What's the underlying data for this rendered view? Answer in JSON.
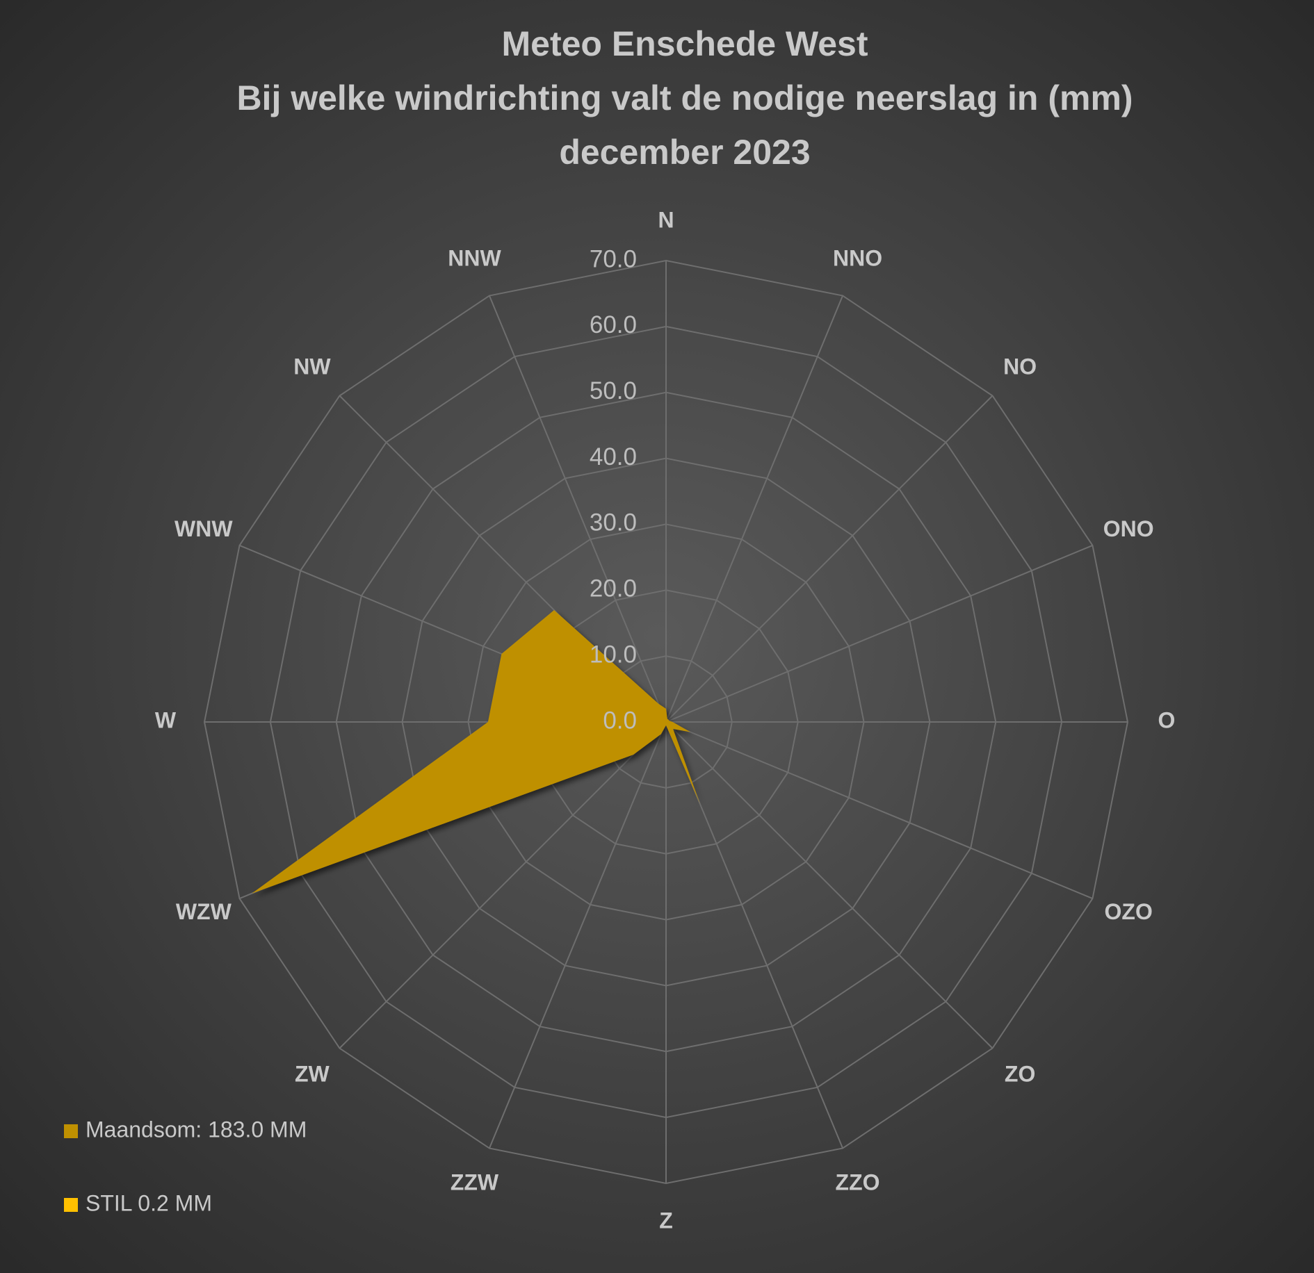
{
  "chart_data": {
    "type": "radar",
    "title": [
      "Meteo Enschede West",
      "Bij welke windrichting valt de nodige neerslag in (mm)",
      "december 2023"
    ],
    "categories": [
      "N",
      "NNO",
      "NO",
      "ONO",
      "O",
      "OZO",
      "ZO",
      "ZZO",
      "Z",
      "ZZW",
      "ZW",
      "WZW",
      "W",
      "WNW",
      "NW",
      "NNW"
    ],
    "series": [
      {
        "name": "Maandsom: 183.0 MM",
        "color": "#bf9000",
        "values": [
          2,
          0.5,
          0.5,
          0.5,
          1,
          4,
          1.5,
          13.5,
          0.5,
          2,
          7,
          68,
          27,
          27,
          24,
          3
        ]
      },
      {
        "name": "STIL 0.2 MM",
        "color": "#ffc000",
        "values": [
          null,
          null,
          null,
          null,
          null,
          null,
          null,
          null,
          null,
          null,
          null,
          null,
          null,
          null,
          null,
          null
        ]
      }
    ],
    "ylim": [
      0,
      70
    ],
    "yticks": [
      {
        "value": 0,
        "label": "0.0"
      },
      {
        "value": 10,
        "label": "10.0"
      },
      {
        "value": 20,
        "label": "20.0"
      },
      {
        "value": 30,
        "label": "30.0"
      },
      {
        "value": 40,
        "label": "40.0"
      },
      {
        "value": 50,
        "label": "50.0"
      },
      {
        "value": 60,
        "label": "60.0"
      },
      {
        "value": 70,
        "label": "70.0"
      }
    ],
    "grid": true,
    "legend": "bottom-left"
  }
}
